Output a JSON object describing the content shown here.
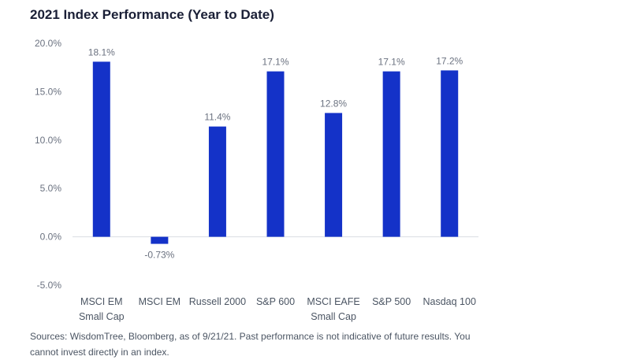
{
  "title": "2021 Index Performance (Year to Date)",
  "source": "Sources: WisdomTree, Bloomberg, as of 9/21/21. Past performance is not indicative of future results. You cannot invest directly in an index.",
  "colors": {
    "bar": "#1432c8",
    "axis": "#d9dde3"
  },
  "chart_data": {
    "type": "bar",
    "title": "2021 Index Performance (Year to Date)",
    "xlabel": "",
    "ylabel": "",
    "ylim": [
      -5.0,
      20.0
    ],
    "yticks": [
      20.0,
      15.0,
      10.0,
      5.0,
      0.0,
      -5.0
    ],
    "ytick_labels": [
      "20.0%",
      "15.0%",
      "10.0%",
      "5.0%",
      "0.0%",
      "-5.0%"
    ],
    "grid": false,
    "categories": [
      [
        "MSCI EM",
        "Small Cap"
      ],
      [
        "MSCI EM"
      ],
      [
        "Russell 2000"
      ],
      [
        "S&P 600"
      ],
      [
        "MSCI EAFE",
        "Small Cap"
      ],
      [
        "S&P 500"
      ],
      [
        "Nasdaq 100"
      ]
    ],
    "values": [
      18.1,
      -0.73,
      11.4,
      17.1,
      12.8,
      17.1,
      17.2
    ],
    "data_labels": [
      "18.1%",
      "-0.73%",
      "11.4%",
      "17.1%",
      "12.8%",
      "17.1%",
      "17.2%"
    ]
  }
}
